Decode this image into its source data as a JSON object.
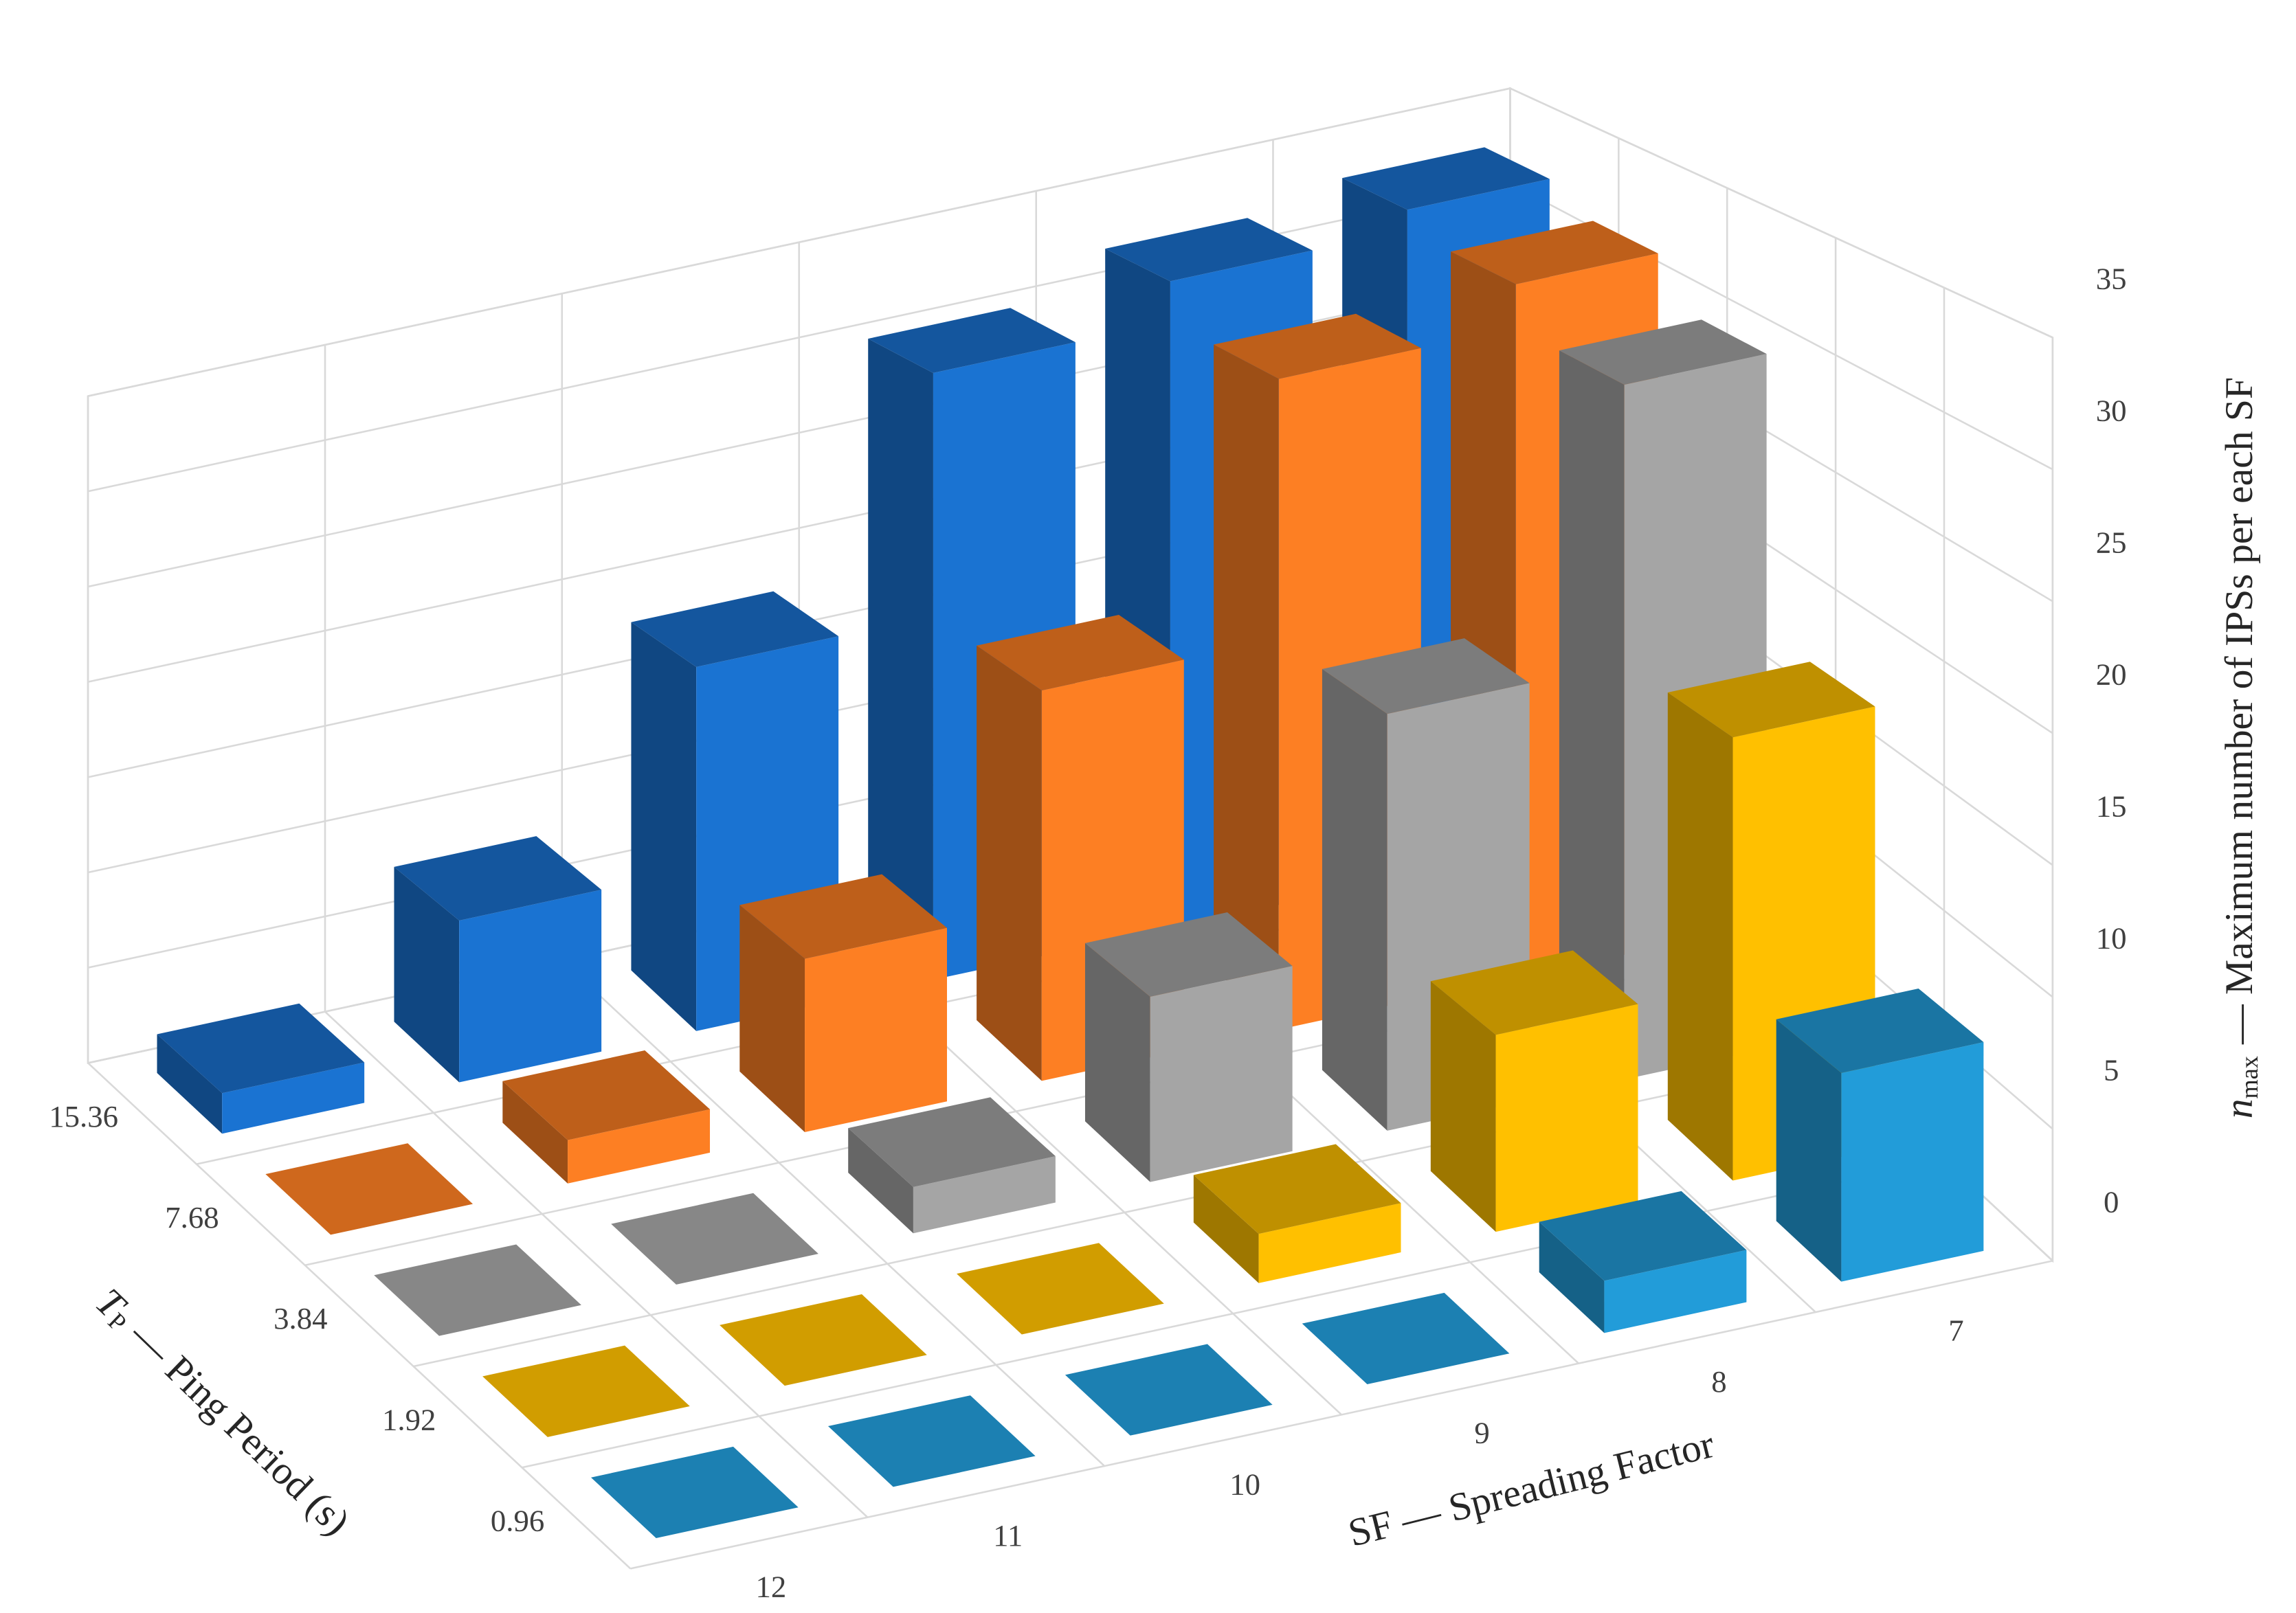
{
  "chart_data": {
    "type": "bar3d",
    "categories": [
      "12",
      "11",
      "10",
      "9",
      "8",
      "7"
    ],
    "series": [
      {
        "name": "15.36",
        "color": "#1a73d2",
        "values": [
          2,
          8,
          18,
          30,
          32,
          33
        ]
      },
      {
        "name": "7.68",
        "color": "#fd7f23",
        "values": [
          0,
          2,
          8,
          18,
          30,
          32
        ]
      },
      {
        "name": "3.84",
        "color": "#a5a5a5",
        "values": [
          0,
          0,
          2,
          8,
          18,
          30
        ]
      },
      {
        "name": "1.92",
        "color": "#ffc000",
        "values": [
          0,
          0,
          0,
          2,
          8,
          18
        ]
      },
      {
        "name": "0.96",
        "color": "#229cd9",
        "values": [
          0,
          0,
          0,
          0,
          2,
          8
        ]
      }
    ],
    "ylim": [
      0,
      35
    ],
    "yticks": [
      0,
      5,
      10,
      15,
      20,
      25,
      30,
      35
    ],
    "grid": true,
    "x_label": "SF — Spreading Factor",
    "depth_label": {
      "symbol": "T",
      "subscript": "P",
      "text": "— Ping Period (s)"
    },
    "y_label": {
      "symbol": "n",
      "subscript": "max",
      "text": "— Maximum number of IPSs per each SF"
    }
  }
}
